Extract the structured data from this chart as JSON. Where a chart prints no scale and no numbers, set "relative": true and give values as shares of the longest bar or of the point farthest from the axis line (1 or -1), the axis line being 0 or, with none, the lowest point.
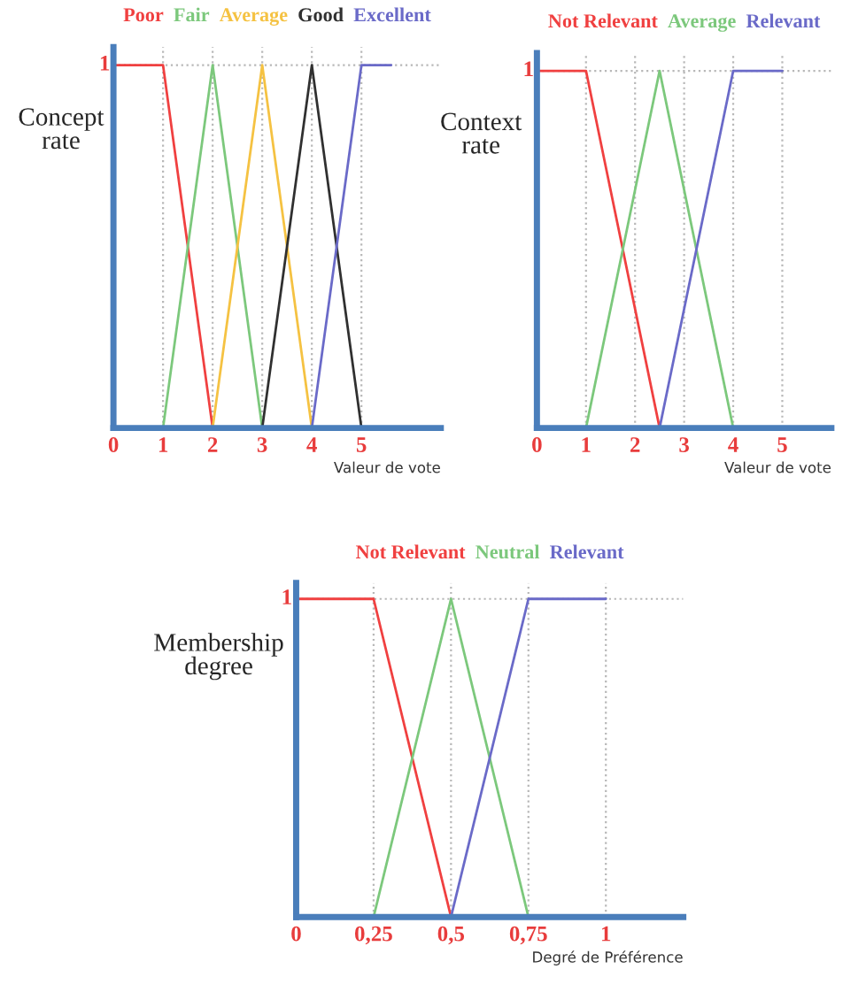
{
  "chart_data": [
    {
      "type": "line",
      "ylabel": "Concept rate",
      "xlabel": "Valeur de vote",
      "relative": true,
      "annotations": [
        "1"
      ],
      "xlim": [
        0,
        6.6
      ],
      "xticks": [
        0,
        1,
        2,
        3,
        4,
        5
      ],
      "grid": true,
      "legend": "top",
      "series": [
        {
          "name": "Poor",
          "color": "#f04040",
          "x": [
            0,
            1,
            2
          ],
          "values": [
            1,
            1,
            0
          ]
        },
        {
          "name": "Fair",
          "color": "#7cc87c",
          "x": [
            1,
            2,
            3
          ],
          "values": [
            0,
            1,
            0
          ]
        },
        {
          "name": "Average",
          "color": "#f5c242",
          "x": [
            2,
            3,
            4
          ],
          "values": [
            0,
            1,
            0
          ]
        },
        {
          "name": "Good",
          "color": "#303030",
          "x": [
            3,
            4,
            5
          ],
          "values": [
            0,
            1,
            0
          ]
        },
        {
          "name": "Excellent",
          "color": "#6a6ac8",
          "x": [
            4,
            5,
            5.6
          ],
          "values": [
            0,
            1,
            1
          ]
        }
      ]
    },
    {
      "type": "line",
      "ylabel": "Context rate",
      "xlabel": "Valeur de vote",
      "relative": true,
      "annotations": [
        "1"
      ],
      "xlim": [
        0,
        6
      ],
      "xticks": [
        0,
        1,
        2,
        3,
        4,
        5
      ],
      "grid": true,
      "legend": "top",
      "series": [
        {
          "name": "Not Relevant",
          "color": "#f04040",
          "x": [
            0,
            1,
            2.5
          ],
          "values": [
            1,
            1,
            0
          ]
        },
        {
          "name": "Average",
          "color": "#7cc87c",
          "x": [
            1,
            2.5,
            4
          ],
          "values": [
            0,
            1,
            0
          ]
        },
        {
          "name": "Relevant",
          "color": "#6a6ac8",
          "x": [
            2.5,
            4,
            5
          ],
          "values": [
            0,
            1,
            1
          ]
        }
      ]
    },
    {
      "type": "line",
      "ylabel": "Membership degree",
      "xlabel": "Degré de Préférence",
      "relative": true,
      "annotations": [
        "1"
      ],
      "xlim": [
        0,
        1.25
      ],
      "xticks": [
        0,
        {
          "value": 0.25,
          "label": "0,25"
        },
        {
          "value": 0.5,
          "label": "0,5"
        },
        {
          "value": 0.75,
          "label": "0,75"
        },
        1
      ],
      "grid": true,
      "legend": "top",
      "series": [
        {
          "name": "Not Relevant",
          "color": "#f04040",
          "x": [
            0,
            0.25,
            0.5
          ],
          "values": [
            1,
            1,
            0
          ]
        },
        {
          "name": "Neutral",
          "color": "#7cc87c",
          "x": [
            0.25,
            0.5,
            0.75
          ],
          "values": [
            0,
            1,
            0
          ]
        },
        {
          "name": "Relevant",
          "color": "#6a6ac8",
          "x": [
            0.5,
            0.75,
            1
          ],
          "values": [
            0,
            1,
            1
          ]
        }
      ]
    }
  ]
}
